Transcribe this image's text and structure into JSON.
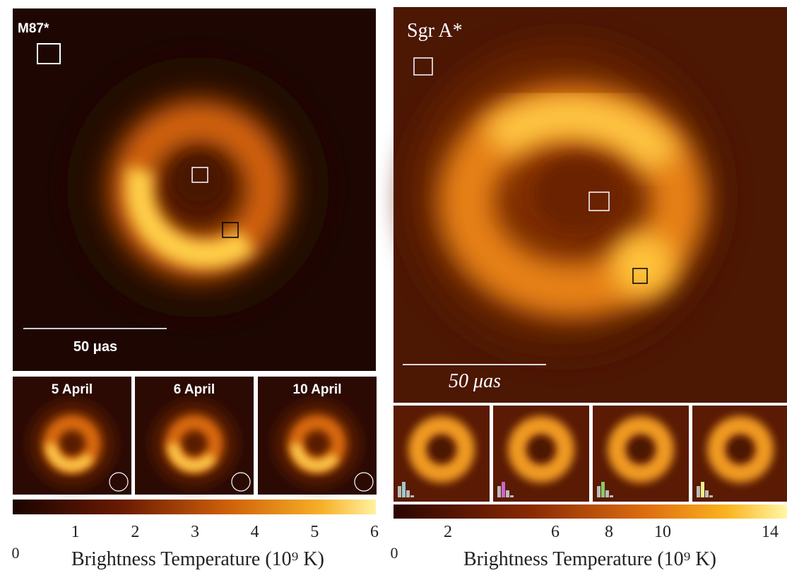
{
  "left": {
    "label": "M87*",
    "scale_bar": "50 μas",
    "panels": [
      "5 April",
      "6 April",
      "10 April"
    ],
    "colorbar": {
      "range": [
        0,
        6
      ],
      "ticks": [
        0,
        1,
        2,
        3,
        4,
        5,
        6
      ],
      "label": "Brightness Temperature (10⁹ K)"
    }
  },
  "right": {
    "label": "Sgr A*",
    "scale_bar": "50 μas",
    "colorbar": {
      "range": [
        0,
        14
      ],
      "ticks": [
        0,
        2,
        6,
        8,
        10,
        14
      ],
      "label": "Brightness Temperature (10⁹ K)"
    }
  }
}
